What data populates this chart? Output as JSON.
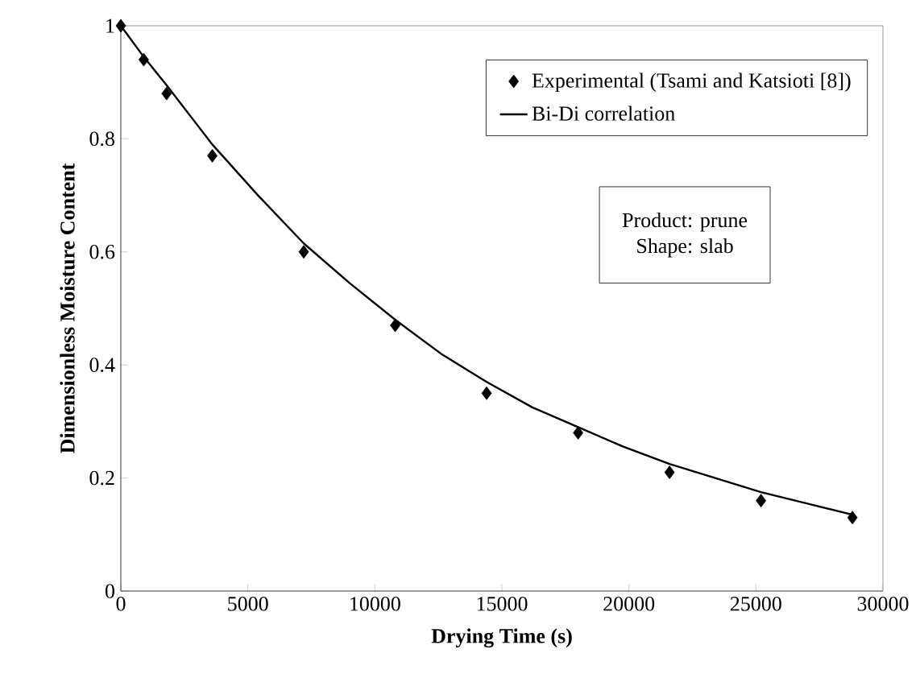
{
  "chart_data": {
    "type": "scatter",
    "xlabel": "Drying Time (s)",
    "ylabel": "Dimensionless Moisture Content",
    "xlim": [
      0,
      30000
    ],
    "xticks": [
      0,
      5000,
      10000,
      15000,
      20000,
      25000,
      30000
    ],
    "ylim": [
      0,
      1
    ],
    "yticks": [
      0,
      0.2,
      0.4,
      0.6,
      0.8,
      1
    ],
    "legend": "top right",
    "grid": false,
    "annotations": [
      "Product: prune",
      "Shape: slab"
    ],
    "series": [
      {
        "name": "Experimental (Tsami and Katsioti [8])",
        "marker": "diamond",
        "color": "#000000",
        "x": [
          0,
          900,
          1800,
          3600,
          7200,
          10800,
          14400,
          18000,
          21600,
          25200,
          28800
        ],
        "values": [
          1.0,
          0.94,
          0.88,
          0.77,
          0.6,
          0.47,
          0.35,
          0.28,
          0.21,
          0.16,
          0.13
        ]
      },
      {
        "name": "Bi-Di correlation",
        "type": "line",
        "marker": "none",
        "line_style": "solid",
        "color": "#000000",
        "x": [
          0,
          900,
          1800,
          3600,
          5400,
          7200,
          9000,
          10800,
          12600,
          14400,
          16200,
          18000,
          19800,
          21600,
          23400,
          25200,
          27000,
          28800
        ],
        "values": [
          1.0,
          0.945,
          0.895,
          0.79,
          0.7,
          0.615,
          0.545,
          0.48,
          0.42,
          0.37,
          0.325,
          0.29,
          0.255,
          0.225,
          0.2,
          0.175,
          0.155,
          0.135
        ]
      }
    ]
  }
}
